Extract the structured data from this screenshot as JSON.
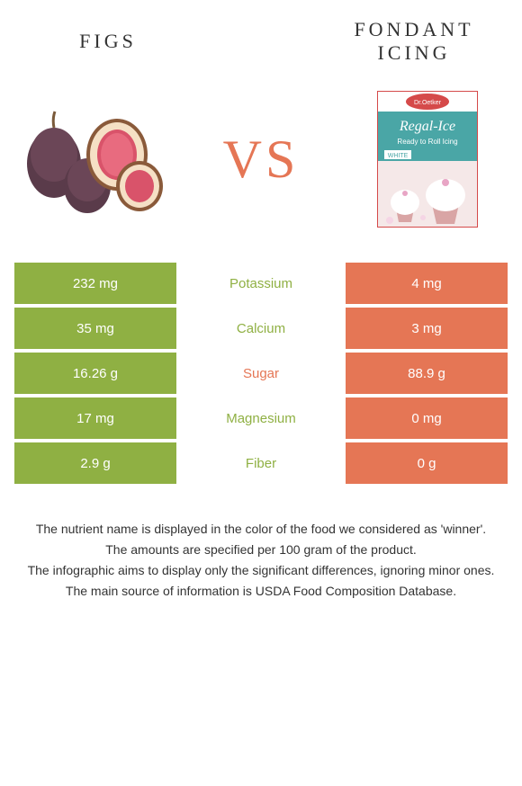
{
  "header": {
    "left_title": "FIGS",
    "right_title": "FONDANT ICING"
  },
  "vs_label": "VS",
  "colors": {
    "left_bg": "#8fb043",
    "right_bg": "#e57655",
    "mid_winner_left": "#8fb043",
    "mid_winner_right": "#e57655",
    "vs_color": "#e57655"
  },
  "rows": [
    {
      "left": "232 mg",
      "mid": "Potassium",
      "right": "4 mg",
      "winner": "left"
    },
    {
      "left": "35 mg",
      "mid": "Calcium",
      "right": "3 mg",
      "winner": "left"
    },
    {
      "left": "16.26 g",
      "mid": "Sugar",
      "right": "88.9 g",
      "winner": "right"
    },
    {
      "left": "17 mg",
      "mid": "Magnesium",
      "right": "0 mg",
      "winner": "left"
    },
    {
      "left": "2.9 g",
      "mid": "Fiber",
      "right": "0 g",
      "winner": "left"
    }
  ],
  "footer": {
    "line1": "The nutrient name is displayed in the color of the food we considered as 'winner'.",
    "line2": "The amounts are specified per 100 gram of the product.",
    "line3": "The infographic aims to display only the significant differences, ignoring minor ones.",
    "line4": "The main source of information is USDA Food Composition Database."
  },
  "fondant_box": {
    "brand": "Dr.Oetker",
    "product": "Regal-Ice",
    "subtitle": "Ready to Roll Icing",
    "tag": "WHITE"
  }
}
